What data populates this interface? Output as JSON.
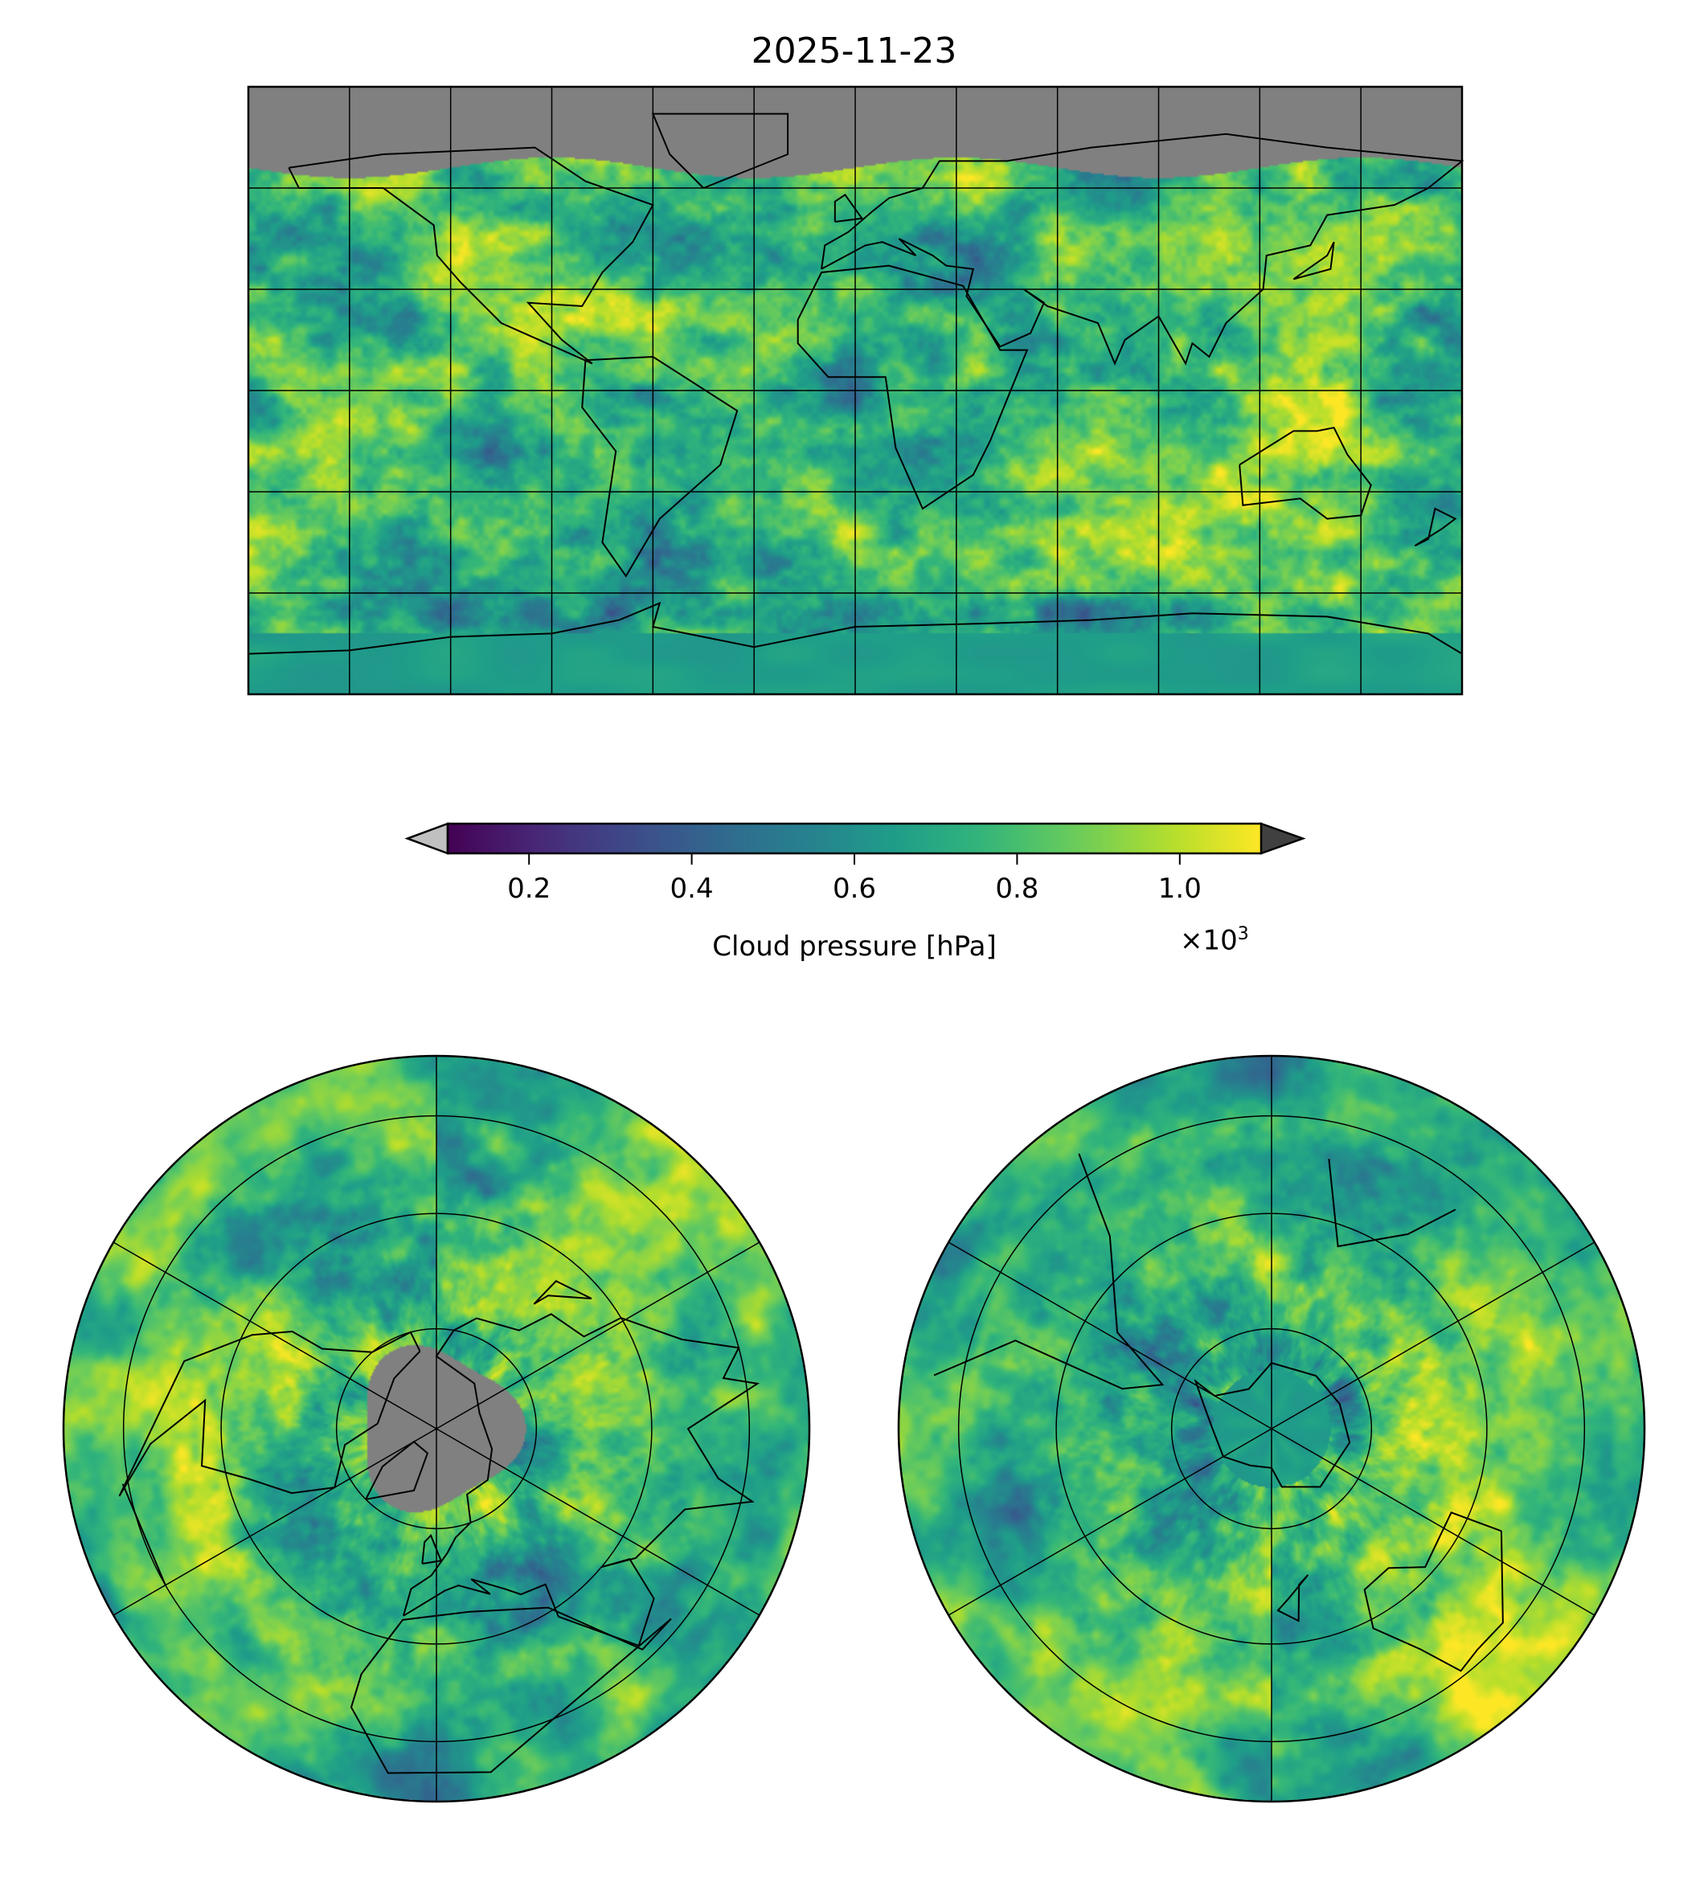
{
  "title": "2025-11-23",
  "chart_data": {
    "type": "heatmap",
    "title": "2025-11-23",
    "colorbar": {
      "label": "Cloud pressure [hPa]",
      "multiplier": "×10",
      "multiplier_exp": "3",
      "range": [
        0.1,
        1.1
      ],
      "ticks": [
        0.2,
        0.4,
        0.6,
        0.8,
        1.0
      ],
      "tick_labels": [
        "0.2",
        "0.4",
        "0.6",
        "0.8",
        "1.0"
      ],
      "colormap": "viridis",
      "extend_min_color": "#c0c0c0",
      "extend_max_color": "#404040",
      "missing_color": "#808080"
    },
    "gridlines": {
      "lon_step_deg": 30,
      "lat_step_deg": 30
    }
  }
}
